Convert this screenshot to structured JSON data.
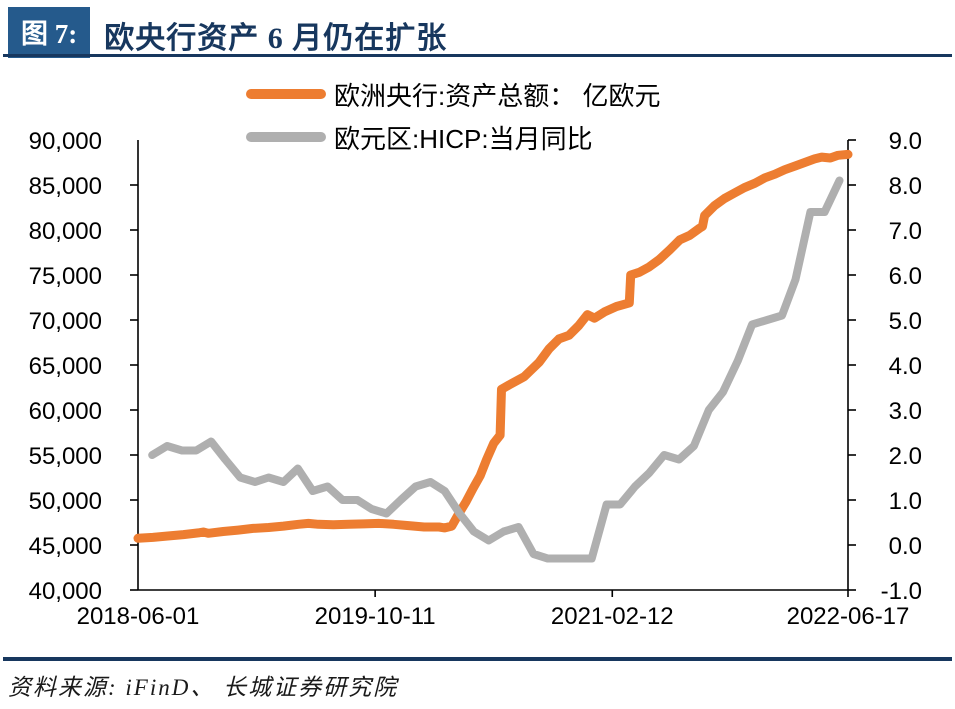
{
  "header": {
    "figure_label": "图 7:",
    "title": "欧央行资产 6 月仍在扩张"
  },
  "footer": {
    "source": "资料来源: iFinD、 长城证券研究院"
  },
  "colors": {
    "navy": "#17375E",
    "box_blue": "#255A8C",
    "assets_orange": "#ED7D31",
    "hicp_gray": "#AFAFAF",
    "negative_red": "#FF0000",
    "axis_black": "#000000"
  },
  "chart_data": {
    "type": "line",
    "legend_position": "top-center",
    "grid": false,
    "x_range": [
      "2018-06-01",
      "2022-06-17"
    ],
    "x_ticks": [
      {
        "label": "2018-06-01",
        "frac": 0.0
      },
      {
        "label": "2019-10-11",
        "frac": 0.334
      },
      {
        "label": "2021-02-12",
        "frac": 0.668
      },
      {
        "label": "2022-06-17",
        "frac": 1.0
      }
    ],
    "left_axis": {
      "min": 40000,
      "max": 90000,
      "ticks": [
        {
          "label": "90,000",
          "v": 90000
        },
        {
          "label": "85,000",
          "v": 85000
        },
        {
          "label": "80,000",
          "v": 80000
        },
        {
          "label": "75,000",
          "v": 75000
        },
        {
          "label": "70,000",
          "v": 70000
        },
        {
          "label": "65,000",
          "v": 65000
        },
        {
          "label": "60,000",
          "v": 60000
        },
        {
          "label": "55,000",
          "v": 55000
        },
        {
          "label": "50,000",
          "v": 50000
        },
        {
          "label": "45,000",
          "v": 45000
        },
        {
          "label": "40,000",
          "v": 40000
        }
      ]
    },
    "right_axis": {
      "min": -1,
      "max": 9,
      "ticks": [
        {
          "label": "9.0",
          "v": 9
        },
        {
          "label": "8.0",
          "v": 8
        },
        {
          "label": "7.0",
          "v": 7
        },
        {
          "label": "6.0",
          "v": 6
        },
        {
          "label": "5.0",
          "v": 5
        },
        {
          "label": "4.0",
          "v": 4
        },
        {
          "label": "3.0",
          "v": 3
        },
        {
          "label": "2.0",
          "v": 2
        },
        {
          "label": "1.0",
          "v": 1
        },
        {
          "label": "0.0",
          "v": 0
        },
        {
          "label": "-1.0",
          "v": -1,
          "color": "#FF0000"
        }
      ]
    },
    "series": [
      {
        "name": "欧洲央行:资产总额： 亿欧元",
        "axis": "left",
        "color": "#ED7D31",
        "stroke_width": 9,
        "points": [
          [
            0.0,
            45750
          ],
          [
            0.021,
            45850
          ],
          [
            0.042,
            46000
          ],
          [
            0.064,
            46150
          ],
          [
            0.085,
            46350
          ],
          [
            0.092,
            46450
          ],
          [
            0.099,
            46300
          ],
          [
            0.12,
            46500
          ],
          [
            0.141,
            46650
          ],
          [
            0.162,
            46850
          ],
          [
            0.184,
            46950
          ],
          [
            0.205,
            47100
          ],
          [
            0.226,
            47300
          ],
          [
            0.24,
            47400
          ],
          [
            0.254,
            47300
          ],
          [
            0.275,
            47250
          ],
          [
            0.297,
            47300
          ],
          [
            0.318,
            47350
          ],
          [
            0.339,
            47400
          ],
          [
            0.36,
            47300
          ],
          [
            0.381,
            47150
          ],
          [
            0.403,
            47000
          ],
          [
            0.424,
            47000
          ],
          [
            0.432,
            46900
          ],
          [
            0.442,
            47100
          ],
          [
            0.452,
            48500
          ],
          [
            0.462,
            49800
          ],
          [
            0.472,
            51300
          ],
          [
            0.482,
            52700
          ],
          [
            0.491,
            54500
          ],
          [
            0.501,
            56300
          ],
          [
            0.51,
            57200
          ],
          [
            0.512,
            62300
          ],
          [
            0.523,
            62800
          ],
          [
            0.544,
            63700
          ],
          [
            0.565,
            65300
          ],
          [
            0.579,
            66800
          ],
          [
            0.593,
            67900
          ],
          [
            0.607,
            68300
          ],
          [
            0.621,
            69400
          ],
          [
            0.633,
            70600
          ],
          [
            0.643,
            70200
          ],
          [
            0.657,
            70900
          ],
          [
            0.674,
            71500
          ],
          [
            0.692,
            71900
          ],
          [
            0.694,
            75000
          ],
          [
            0.706,
            75300
          ],
          [
            0.72,
            75900
          ],
          [
            0.734,
            76700
          ],
          [
            0.749,
            77800
          ],
          [
            0.763,
            78900
          ],
          [
            0.777,
            79400
          ],
          [
            0.791,
            80200
          ],
          [
            0.795,
            80400
          ],
          [
            0.798,
            81600
          ],
          [
            0.812,
            82700
          ],
          [
            0.826,
            83500
          ],
          [
            0.84,
            84100
          ],
          [
            0.854,
            84700
          ],
          [
            0.869,
            85200
          ],
          [
            0.883,
            85800
          ],
          [
            0.897,
            86200
          ],
          [
            0.911,
            86700
          ],
          [
            0.925,
            87100
          ],
          [
            0.939,
            87500
          ],
          [
            0.953,
            87900
          ],
          [
            0.963,
            88100
          ],
          [
            0.975,
            88000
          ],
          [
            0.986,
            88300
          ],
          [
            1.0,
            88400
          ]
        ]
      },
      {
        "name": "欧元区:HICP:当月同比",
        "axis": "right",
        "color": "#AFAFAF",
        "stroke_width": 8,
        "points": [
          [
            0.02,
            2.0
          ],
          [
            0.041,
            2.2
          ],
          [
            0.062,
            2.1
          ],
          [
            0.082,
            2.1
          ],
          [
            0.103,
            2.3
          ],
          [
            0.123,
            1.9
          ],
          [
            0.144,
            1.5
          ],
          [
            0.165,
            1.4
          ],
          [
            0.184,
            1.5
          ],
          [
            0.205,
            1.4
          ],
          [
            0.225,
            1.7
          ],
          [
            0.246,
            1.2
          ],
          [
            0.267,
            1.3
          ],
          [
            0.288,
            1.0
          ],
          [
            0.309,
            1.0
          ],
          [
            0.329,
            0.8
          ],
          [
            0.35,
            0.7
          ],
          [
            0.37,
            1.0
          ],
          [
            0.391,
            1.3
          ],
          [
            0.412,
            1.4
          ],
          [
            0.432,
            1.2
          ],
          [
            0.453,
            0.7
          ],
          [
            0.473,
            0.3
          ],
          [
            0.494,
            0.1
          ],
          [
            0.515,
            0.3
          ],
          [
            0.536,
            0.4
          ],
          [
            0.557,
            -0.2
          ],
          [
            0.577,
            -0.3
          ],
          [
            0.598,
            -0.3
          ],
          [
            0.618,
            -0.3
          ],
          [
            0.639,
            -0.3
          ],
          [
            0.66,
            0.9
          ],
          [
            0.679,
            0.9
          ],
          [
            0.7,
            1.3
          ],
          [
            0.72,
            1.6
          ],
          [
            0.741,
            2.0
          ],
          [
            0.762,
            1.9
          ],
          [
            0.783,
            2.2
          ],
          [
            0.804,
            3.0
          ],
          [
            0.824,
            3.4
          ],
          [
            0.845,
            4.1
          ],
          [
            0.865,
            4.9
          ],
          [
            0.886,
            5.0
          ],
          [
            0.907,
            5.1
          ],
          [
            0.926,
            5.9
          ],
          [
            0.947,
            7.4
          ],
          [
            0.967,
            7.4
          ],
          [
            0.988,
            8.1
          ]
        ]
      }
    ]
  }
}
